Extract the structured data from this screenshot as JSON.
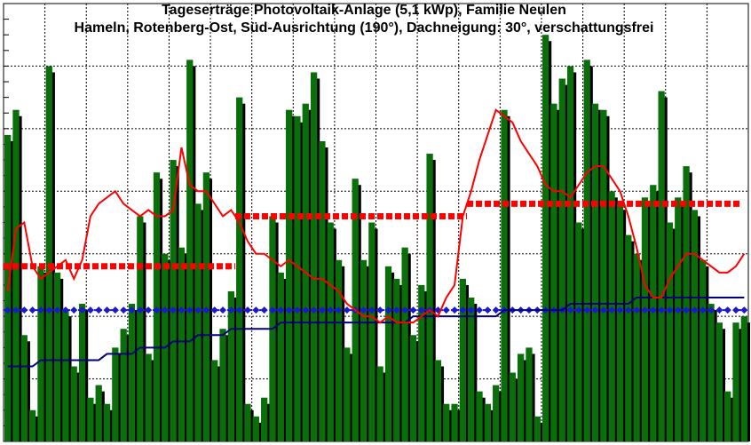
{
  "chart_data": {
    "type": "bar",
    "title": "Tageserträge Photovoltaik-Anlage (5,1 kWp),  Familie Neulen",
    "subtitle": "Hameln, Rotenberg-Ost, Süd-Ausrichtung (190°), Dachneigung: 30°, verschattungsfrei",
    "xlabel": "",
    "ylabel": "",
    "ylim": [
      0,
      7
    ],
    "grid": true,
    "colors": {
      "bars": "#0a6e0a",
      "bar_shadow": "#000000",
      "moving_average": "#ff0000",
      "monthly_average": "#ff0000",
      "cumulative_average": "#00007a",
      "reference_level": "#1a1acc"
    },
    "days": [
      1,
      2,
      3,
      4,
      5,
      6,
      7,
      8,
      9,
      10,
      11,
      12,
      13,
      14,
      15,
      16,
      17,
      18,
      19,
      20,
      21,
      22,
      23,
      24,
      25,
      26,
      27,
      28,
      29,
      30,
      31,
      32,
      33,
      34,
      35,
      36,
      37,
      38,
      39,
      40,
      41,
      42,
      43,
      44,
      45,
      46,
      47,
      48,
      49,
      50,
      51,
      52,
      53,
      54,
      55,
      56,
      57,
      58,
      59,
      60,
      61,
      62,
      63,
      64,
      65,
      66,
      67,
      68,
      69,
      70,
      71,
      72,
      73,
      74,
      75,
      76,
      77,
      78,
      79,
      80,
      81,
      82,
      83,
      84,
      85,
      86,
      87,
      88,
      89,
      90
    ],
    "series": [
      {
        "type": "bar",
        "values": [
          4.9,
          5.3,
          1.7,
          0.5,
          2.8,
          6.0,
          2.7,
          2.1,
          1.2,
          2.2,
          0.7,
          0.9,
          0.6,
          1.5,
          1.8,
          2.2,
          3.6,
          1.4,
          4.3,
          3.0,
          4.5,
          3.1,
          6.1,
          3.8,
          4.3,
          1.3,
          1.8,
          2.4,
          5.5,
          0.6,
          0.4,
          0.7,
          3.6,
          2.7,
          5.3,
          5.2,
          5.4,
          5.9,
          4.8,
          3.5,
          2.9,
          1.5,
          4.2,
          2.9,
          3.5,
          1.2,
          2.8,
          2.6,
          3.1,
          1.7,
          2.5,
          4.6,
          1.3,
          0.6,
          0.6,
          2.6,
          2.3,
          0.8,
          0.6,
          0.9,
          5.3,
          1.1,
          1.4,
          1.5,
          0.4,
          6.5,
          5.4,
          5.8,
          6.0,
          3.5,
          6.1,
          5.4,
          5.3,
          4.0,
          3.8,
          3.3,
          3.0,
          3.9,
          4.1,
          5.6,
          3.5,
          3.9,
          4.4,
          3.7,
          2.9,
          2.2,
          1.9,
          0.8,
          1.9,
          2.0
        ],
        "shadow_values": [
          4.8,
          5.2,
          1.6,
          0.4,
          2.7,
          5.9,
          2.6,
          2.0,
          1.1,
          2.1,
          0.6,
          0.8,
          0.5,
          1.4,
          1.7,
          2.1,
          3.5,
          1.3,
          4.2,
          2.9,
          4.4,
          3.0,
          6.0,
          3.7,
          4.2,
          1.2,
          1.7,
          2.3,
          5.4,
          0.5,
          0.3,
          0.6,
          3.5,
          2.6,
          5.2,
          5.1,
          5.3,
          5.8,
          4.7,
          3.4,
          2.8,
          1.4,
          4.1,
          2.8,
          3.4,
          1.1,
          2.7,
          2.5,
          3.0,
          1.6,
          2.4,
          4.5,
          1.2,
          0.5,
          0.5,
          2.5,
          2.2,
          0.7,
          0.5,
          0.8,
          5.2,
          1.0,
          1.3,
          1.4,
          0.3,
          6.4,
          5.3,
          5.7,
          5.9,
          3.4,
          6.0,
          5.3,
          5.2,
          3.9,
          3.7,
          3.2,
          2.9,
          3.8,
          4.0,
          5.5,
          3.4,
          3.8,
          4.3,
          3.6,
          2.8,
          2.1,
          1.8,
          0.7,
          1.8,
          1.9
        ]
      },
      {
        "type": "line",
        "values": [
          2.4,
          3.4,
          3.5,
          2.8,
          2.6,
          2.7,
          2.8,
          2.9,
          2.6,
          2.9,
          3.6,
          3.8,
          3.9,
          4.0,
          3.8,
          3.7,
          3.6,
          3.7,
          3.6,
          3.6,
          3.7,
          4.7,
          4.1,
          4.0,
          4.0,
          3.8,
          3.6,
          3.7,
          3.5,
          3.2,
          3.0,
          3.0,
          2.9,
          2.8,
          2.9,
          2.8,
          2.7,
          2.6,
          2.6,
          2.5,
          2.4,
          2.2,
          2.1,
          2.0,
          2.0,
          1.9,
          2.0,
          1.9,
          1.9,
          1.9,
          2.0,
          2.1,
          2.0,
          2.3,
          2.5,
          3.6,
          4.0,
          4.5,
          4.9,
          5.3,
          5.2,
          5.1,
          4.8,
          4.6,
          4.4,
          4.1,
          4.0,
          4.0,
          3.9,
          4.1,
          4.3,
          4.4,
          4.4,
          4.2,
          4.0,
          3.6,
          3.1,
          2.5,
          2.3,
          2.3,
          2.6,
          2.8,
          3.0,
          3.0,
          2.9,
          2.8,
          2.7,
          2.7,
          2.8,
          3.0
        ]
      },
      {
        "type": "step",
        "segments": [
          {
            "x_start": 1,
            "x_end": 29,
            "value": 2.8
          },
          {
            "x_start": 29,
            "x_end": 57,
            "value": 3.6
          },
          {
            "x_start": 57,
            "x_end": 90,
            "value": 3.8
          }
        ]
      },
      {
        "type": "line",
        "values": [
          1.2,
          1.2,
          1.2,
          1.2,
          1.3,
          1.3,
          1.3,
          1.3,
          1.3,
          1.3,
          1.3,
          1.3,
          1.4,
          1.4,
          1.4,
          1.4,
          1.5,
          1.5,
          1.5,
          1.5,
          1.6,
          1.6,
          1.6,
          1.7,
          1.7,
          1.7,
          1.7,
          1.8,
          1.8,
          1.8,
          1.8,
          1.8,
          1.8,
          1.9,
          1.9,
          1.9,
          1.9,
          1.9,
          1.9,
          1.9,
          1.9,
          1.9,
          1.9,
          1.9,
          1.9,
          1.9,
          1.9,
          1.9,
          1.9,
          2.0,
          2.0,
          2.0,
          2.0,
          2.0,
          2.0,
          2.0,
          2.0,
          2.0,
          2.0,
          2.0,
          2.1,
          2.1,
          2.1,
          2.1,
          2.1,
          2.1,
          2.1,
          2.1,
          2.2,
          2.2,
          2.2,
          2.2,
          2.2,
          2.2,
          2.2,
          2.2,
          2.3,
          2.3,
          2.3,
          2.3,
          2.3,
          2.3,
          2.3,
          2.3,
          2.3,
          2.3,
          2.3,
          2.3,
          2.3,
          2.3
        ]
      },
      {
        "type": "reference",
        "value": 2.1
      }
    ]
  }
}
